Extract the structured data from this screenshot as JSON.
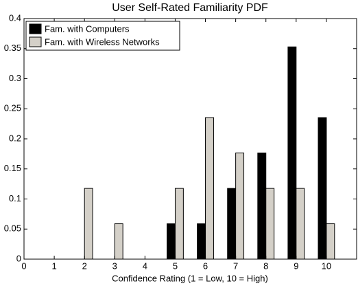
{
  "chart_data": {
    "type": "bar",
    "title": "User Self-Rated Familiarity PDF",
    "x_label": "Confidence Rating (1 = Low, 10 = High)",
    "x": [
      1,
      2,
      3,
      4,
      5,
      6,
      7,
      8,
      9,
      10
    ],
    "series": [
      {
        "name": "Fam. with Computers",
        "color": "#000000",
        "values": [
          0,
          0,
          0,
          0,
          0.0588,
          0.0588,
          0.1176,
          0.1765,
          0.3529,
          0.2353
        ]
      },
      {
        "name": "Fam. with Wireless Networks",
        "color": "#d4d0c8",
        "values": [
          0,
          0.1176,
          0.0588,
          0,
          0.1176,
          0.2353,
          0.1765,
          0.1176,
          0.1176,
          0.0588
        ]
      }
    ],
    "xlim": [
      0,
      11
    ],
    "xticks": [
      0,
      1,
      2,
      3,
      4,
      5,
      6,
      7,
      8,
      9,
      10
    ],
    "ylim": [
      0,
      0.4
    ],
    "yticks": [
      0,
      0.05,
      0.1,
      0.15,
      0.2,
      0.25,
      0.3,
      0.35,
      0.4
    ],
    "legend": "upper left",
    "grid": false
  }
}
